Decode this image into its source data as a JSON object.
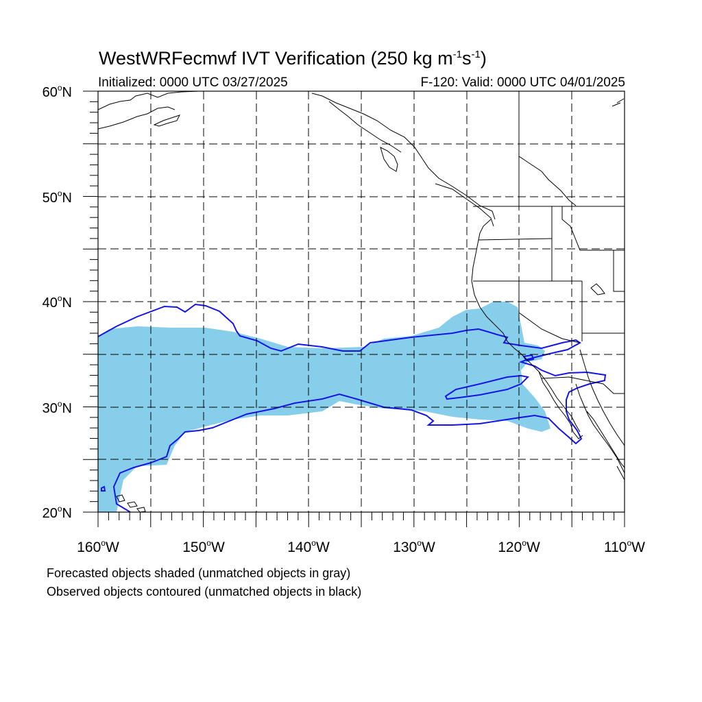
{
  "title": {
    "main": "WestWRFecmwf IVT Verification (250 kg m",
    "exp1": "-1",
    "mid": "s",
    "exp2": "-1",
    "end": ")"
  },
  "subtitle": {
    "initialized": "Initialized: 0000 UTC 03/27/2025",
    "valid": "F-120: Valid: 0000 UTC 04/01/2025"
  },
  "axes": {
    "lat_labels": [
      {
        "num": "60",
        "deg": "o",
        "hemi": "N"
      },
      {
        "num": "50",
        "deg": "o",
        "hemi": "N"
      },
      {
        "num": "40",
        "deg": "o",
        "hemi": "N"
      },
      {
        "num": "30",
        "deg": "o",
        "hemi": "N"
      },
      {
        "num": "20",
        "deg": "o",
        "hemi": "N"
      }
    ],
    "lon_labels": [
      {
        "num": "160",
        "deg": "o",
        "hemi": "W"
      },
      {
        "num": "150",
        "deg": "o",
        "hemi": "W"
      },
      {
        "num": "140",
        "deg": "o",
        "hemi": "W"
      },
      {
        "num": "130",
        "deg": "o",
        "hemi": "W"
      },
      {
        "num": "120",
        "deg": "o",
        "hemi": "W"
      },
      {
        "num": "110",
        "deg": "o",
        "hemi": "W"
      }
    ],
    "lon_range": [
      -160,
      -110
    ],
    "lat_range": [
      20,
      60
    ],
    "grid": "dashed every 5 degrees"
  },
  "legend": {
    "line1": "Forecasted objects shaded (unmatched objects in gray)",
    "line2": "Observed objects contoured (unmatched objects in black)"
  },
  "colors": {
    "forecast_fill": "#87ceeb",
    "observed_contour": "#1414e6",
    "coastline": "#000000",
    "grid": "#000000"
  }
}
